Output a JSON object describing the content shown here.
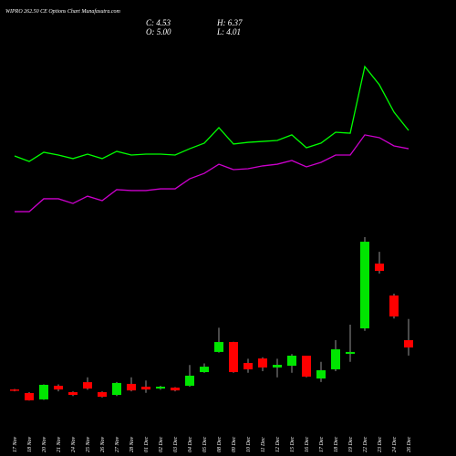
{
  "header": {
    "title": "WIPRO 262.50 CE Options Chart Munafasutra.com",
    "ohlc": [
      "C: 4.53",
      "H: 6.37",
      "O: 5.00",
      "L: 4.01"
    ]
  },
  "chart_data": {
    "type": "candlestick",
    "categories": [
      "17 Nov",
      "18 Nov",
      "20 Nov",
      "21 Nov",
      "24 Nov",
      "25 Nov",
      "26 Nov",
      "27 Nov",
      "28 Nov",
      "01 Dec",
      "02 Dec",
      "03 Dec",
      "04 Dec",
      "05 Dec",
      "08 Dec",
      "09 Dec",
      "10 Dec",
      "11 Dec",
      "12 Dec",
      "15 Dec",
      "16 Dec",
      "17 Dec",
      "18 Dec",
      "19 Dec",
      "22 Dec",
      "23 Dec",
      "24 Dec",
      "26 Dec"
    ],
    "open": [
      1.82,
      1.59,
      1.18,
      2.06,
      1.65,
      2.29,
      1.65,
      1.47,
      2.18,
      2.0,
      1.88,
      1.94,
      2.06,
      2.94,
      4.24,
      4.88,
      3.53,
      3.82,
      3.24,
      3.35,
      4.0,
      2.53,
      3.12,
      4.12,
      5.76,
      9.94,
      7.88,
      5.0
    ],
    "high": [
      1.85,
      1.65,
      2.15,
      2.15,
      1.7,
      2.6,
      1.7,
      2.3,
      2.6,
      2.4,
      2.06,
      1.97,
      3.4,
      3.5,
      5.8,
      4.9,
      3.8,
      3.9,
      3.8,
      4.1,
      4.0,
      3.6,
      5.0,
      6.0,
      11.65,
      10.7,
      8.0,
      6.37
    ],
    "low": [
      1.7,
      1.1,
      1.15,
      1.7,
      1.4,
      1.8,
      1.3,
      1.4,
      1.7,
      1.6,
      1.8,
      1.7,
      2.0,
      2.9,
      4.2,
      2.9,
      2.9,
      3.0,
      2.6,
      2.9,
      2.6,
      2.3,
      3.0,
      3.6,
      5.6,
      9.3,
      6.4,
      4.01
    ],
    "close": [
      1.76,
      1.12,
      2.12,
      1.82,
      1.47,
      1.88,
      1.35,
      2.24,
      1.76,
      1.82,
      2.0,
      1.76,
      2.71,
      3.29,
      4.88,
      2.94,
      3.12,
      3.24,
      3.41,
      4.0,
      2.65,
      3.06,
      4.41,
      4.24,
      11.35,
      9.47,
      6.53,
      4.53
    ],
    "up_color": "#00e600",
    "down_color": "#ff0000",
    "lines": [
      {
        "color": "#00ff00",
        "values": [
          16.88,
          16.53,
          17.12,
          16.94,
          16.71,
          17.0,
          16.71,
          17.18,
          16.94,
          17.0,
          17.0,
          16.94,
          17.35,
          17.71,
          18.71,
          17.65,
          17.76,
          17.82,
          17.88,
          18.24,
          17.41,
          17.71,
          18.41,
          18.35,
          22.65,
          21.47,
          19.71,
          18.53
        ]
      },
      {
        "color": "#cc00cc",
        "values": [
          13.29,
          13.29,
          14.12,
          14.12,
          13.82,
          14.29,
          14.0,
          14.71,
          14.65,
          14.65,
          14.76,
          14.76,
          15.41,
          15.76,
          16.35,
          16.0,
          16.06,
          16.24,
          16.35,
          16.59,
          16.18,
          16.47,
          16.94,
          16.94,
          18.24,
          18.06,
          17.53,
          17.35
        ]
      }
    ]
  }
}
